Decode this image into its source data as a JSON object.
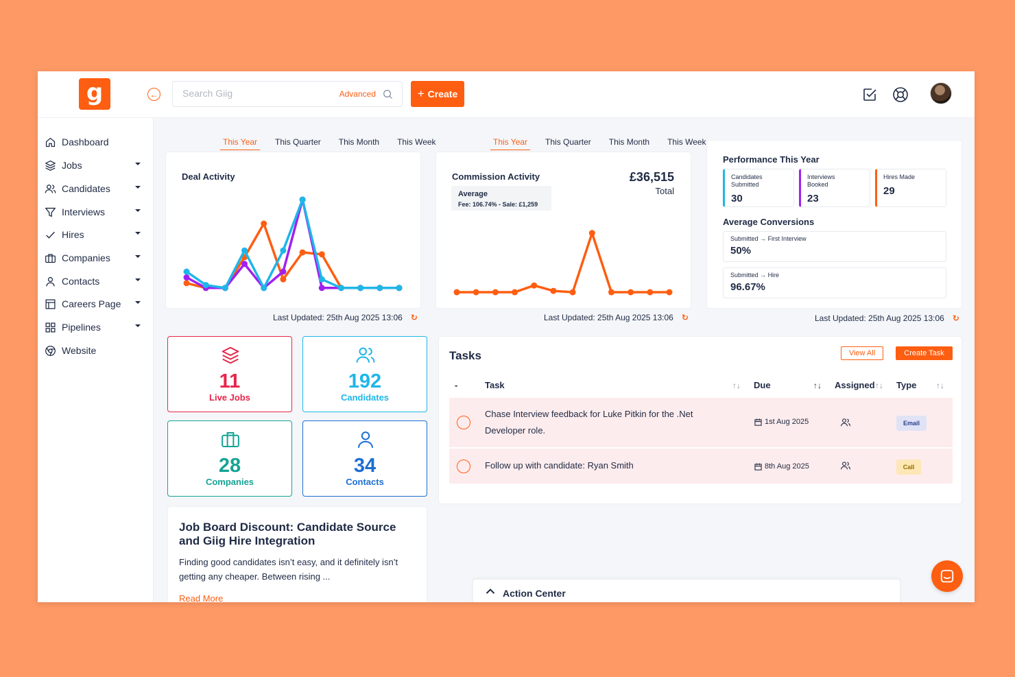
{
  "app": {
    "logo_letter": "g",
    "brand_color": "#fd5e11"
  },
  "search": {
    "placeholder": "Search Giig",
    "advanced_label": "Advanced"
  },
  "toolbar": {
    "create_label": "Create"
  },
  "sidebar": {
    "items": [
      {
        "label": "Dashboard",
        "icon": "home-icon",
        "has_caret": false
      },
      {
        "label": "Jobs",
        "icon": "layers-icon",
        "has_caret": true
      },
      {
        "label": "Candidates",
        "icon": "users-icon",
        "has_caret": true
      },
      {
        "label": "Interviews",
        "icon": "filter-icon",
        "has_caret": true
      },
      {
        "label": "Hires",
        "icon": "check-icon",
        "has_caret": true
      },
      {
        "label": "Companies",
        "icon": "briefcase-icon",
        "has_caret": true
      },
      {
        "label": "Contacts",
        "icon": "user-icon",
        "has_caret": true
      },
      {
        "label": "Careers Page",
        "icon": "layout-icon",
        "has_caret": true
      },
      {
        "label": "Pipelines",
        "icon": "grid-icon",
        "has_caret": true
      },
      {
        "label": "Website",
        "icon": "chrome-icon",
        "has_caret": false
      }
    ]
  },
  "range_tabs": [
    "This Year",
    "This Quarter",
    "This Month",
    "This Week"
  ],
  "active_range": "This Year",
  "deal_activity": {
    "title": "Deal Activity",
    "updated": "Last Updated: 25th Aug 2025 13:06"
  },
  "commission_activity": {
    "title": "Commission Activity",
    "total_amount": "£36,515",
    "total_label": "Total",
    "average_label": "Average",
    "average_value": "Fee: 106.74% - Sale: £1,259",
    "updated": "Last Updated: 25th Aug 2025 13:06"
  },
  "performance": {
    "title": "Performance This Year",
    "stats": [
      {
        "label": "Candidates Submitted",
        "value": "30",
        "color": "#1fb6e8"
      },
      {
        "label": "Interviews Booked",
        "value": "23",
        "color": "#a020f0"
      },
      {
        "label": "Hires Made",
        "value": "29",
        "color": "#fd5e11"
      }
    ],
    "conversions_title": "Average Conversions",
    "conversions": [
      {
        "from": "Submitted",
        "to": "First Interview",
        "value": "50%"
      },
      {
        "from": "Submitted",
        "to": "Hire",
        "value": "96.67%"
      }
    ],
    "updated": "Last Updated: 25th Aug 2025 13:06"
  },
  "tiles": [
    {
      "value": "11",
      "label": "Live Jobs",
      "color": "#e8244a",
      "icon": "layers-icon"
    },
    {
      "value": "192",
      "label": "Candidates",
      "color": "#1fb6e8",
      "icon": "users-icon"
    },
    {
      "value": "28",
      "label": "Companies",
      "color": "#16a394",
      "icon": "briefcase-icon"
    },
    {
      "value": "34",
      "label": "Contacts",
      "color": "#1c6fd1",
      "icon": "user-icon"
    }
  ],
  "tasks": {
    "title": "Tasks",
    "view_all_label": "View All",
    "create_label": "Create Task",
    "columns": {
      "check": "-",
      "task": "Task",
      "due": "Due",
      "assigned": "Assigned",
      "type": "Type"
    },
    "rows": [
      {
        "task": "Chase Interview feedback for Luke Pitkin for the .Net Developer role.",
        "due": "1st Aug 2025",
        "type": "Email",
        "type_bg": "#dfe3f5",
        "type_fg": "#2c3f8f"
      },
      {
        "task": "Follow up with candidate: Ryan Smith",
        "due": "8th Aug 2025",
        "type": "Call",
        "type_bg": "#fde7b5",
        "type_fg": "#9a6b00"
      }
    ]
  },
  "blog": {
    "title": "Job Board Discount: Candidate Source and Giig Hire Integration",
    "excerpt": "Finding good candidates isn’t easy, and it definitely isn’t getting any cheaper. Between rising ...",
    "read_more": "Read More"
  },
  "action_center": {
    "label": "Action Center"
  },
  "chart_data": [
    {
      "type": "line",
      "title": "Deal Activity",
      "x": [
        1,
        2,
        3,
        4,
        5,
        6,
        7,
        8,
        9,
        10,
        11,
        12
      ],
      "ylim": [
        0,
        100
      ],
      "series": [
        {
          "color": "#fd5e11",
          "values": [
            8,
            3,
            3,
            35,
            70,
            12,
            40,
            38,
            3,
            3,
            3,
            3
          ]
        },
        {
          "color": "#a020f0",
          "values": [
            14,
            3,
            3,
            28,
            3,
            20,
            95,
            3,
            3,
            3,
            3,
            3
          ]
        },
        {
          "color": "#1fb6e8",
          "values": [
            20,
            6,
            3,
            42,
            3,
            42,
            95,
            12,
            3,
            3,
            3,
            3
          ]
        }
      ]
    },
    {
      "type": "line",
      "title": "Commission Activity",
      "x": [
        1,
        2,
        3,
        4,
        5,
        6,
        7,
        8,
        9,
        10,
        11,
        12
      ],
      "ylim": [
        0,
        100
      ],
      "series": [
        {
          "color": "#fd5e11",
          "values": [
            2,
            2,
            2,
            2,
            12,
            4,
            2,
            90,
            2,
            2,
            2,
            2
          ]
        }
      ]
    }
  ]
}
